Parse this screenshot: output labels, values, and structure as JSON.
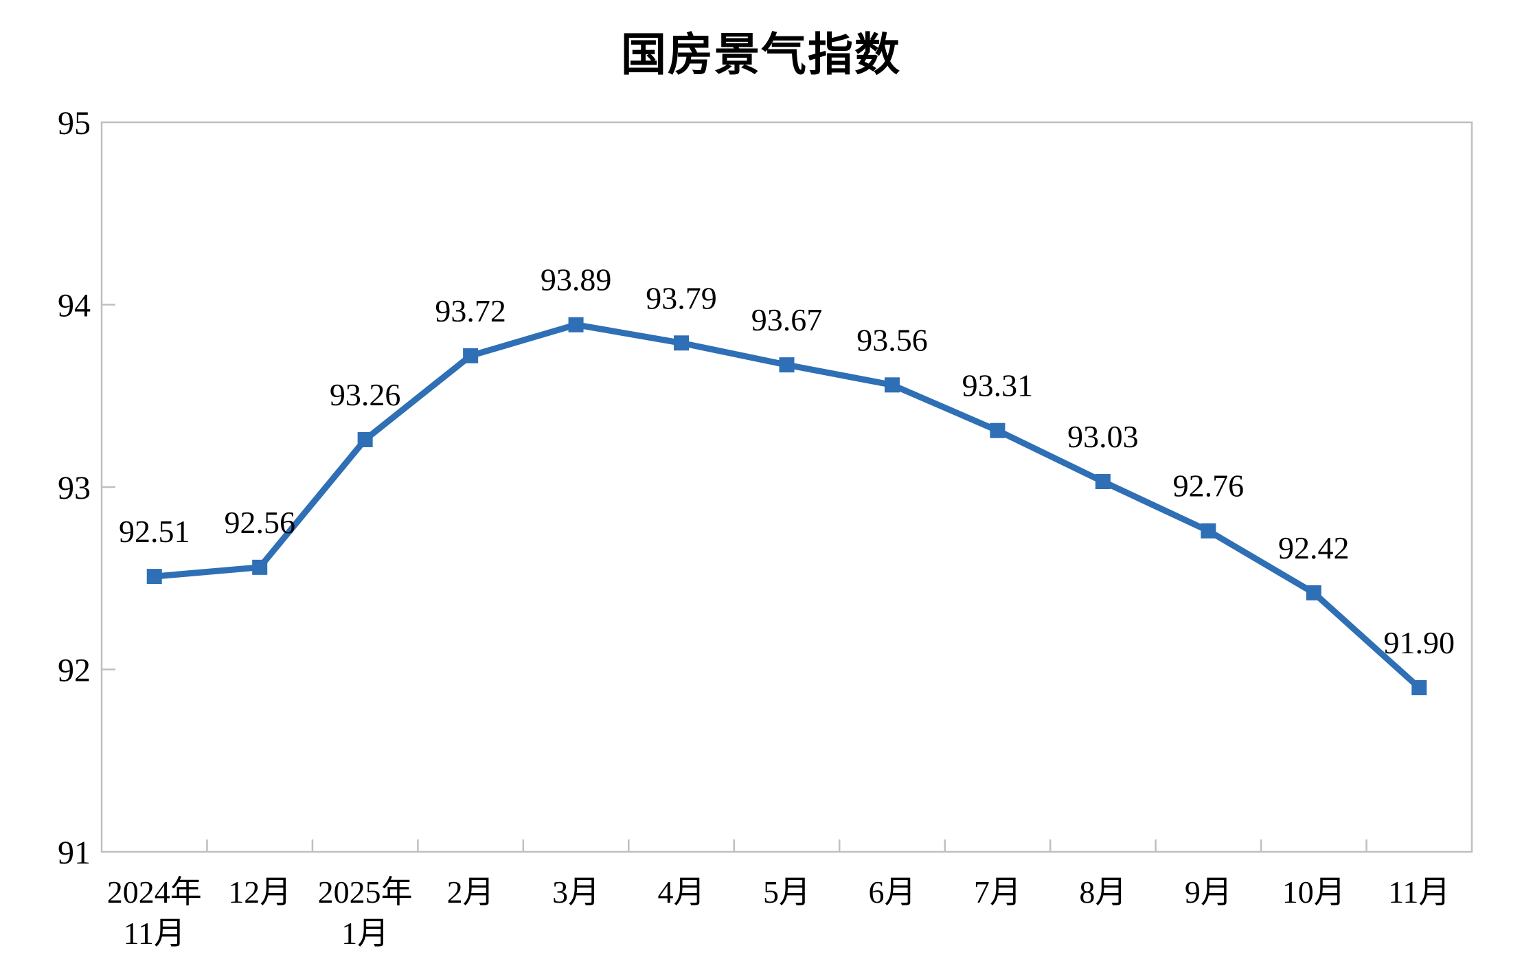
{
  "chart_data": {
    "type": "line",
    "title": "国房景气指数",
    "categories": [
      [
        "2024年",
        "11月"
      ],
      [
        "12月"
      ],
      [
        "2025年",
        "1月"
      ],
      [
        "2月"
      ],
      [
        "3月"
      ],
      [
        "4月"
      ],
      [
        "5月"
      ],
      [
        "6月"
      ],
      [
        "7月"
      ],
      [
        "8月"
      ],
      [
        "9月"
      ],
      [
        "10月"
      ],
      [
        "11月"
      ]
    ],
    "values": [
      92.51,
      92.56,
      93.26,
      93.72,
      93.89,
      93.79,
      93.67,
      93.56,
      93.31,
      93.03,
      92.76,
      92.42,
      91.9
    ],
    "data_labels": [
      "92.51",
      "92.56",
      "93.26",
      "93.72",
      "93.89",
      "93.79",
      "93.67",
      "93.56",
      "93.31",
      "93.03",
      "92.76",
      "92.42",
      "91.90"
    ],
    "xlabel": "",
    "ylabel": "",
    "ylim": [
      91,
      95
    ],
    "yticks": [
      "91",
      "92",
      "93",
      "94",
      "95"
    ],
    "grid": false,
    "legend_position": "none",
    "marker": "square",
    "colors": {
      "line": "#2E6FB5",
      "marker": "#2E6FB5",
      "axis": "#BFBFBF",
      "text": "#000000",
      "background": "#FFFFFF"
    }
  }
}
